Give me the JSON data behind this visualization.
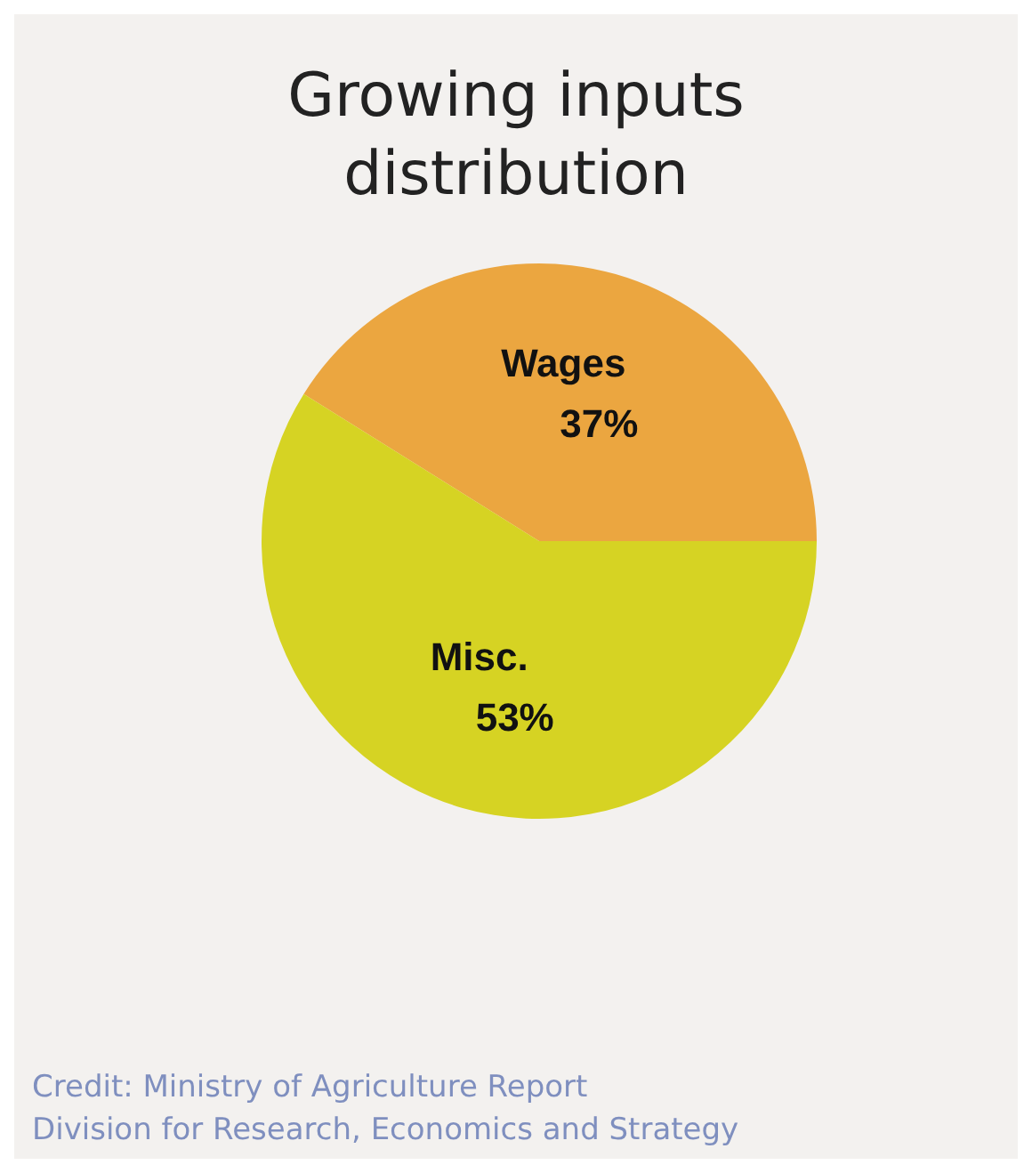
{
  "chart_data": {
    "type": "pie",
    "title": "Growing inputs distribution",
    "categories": [
      "Wages",
      "Misc."
    ],
    "values": [
      37,
      53
    ],
    "colors": [
      "#eba640",
      "#d6d323"
    ],
    "value_labels": [
      "37%",
      "53%"
    ],
    "legend": false,
    "annotations": [
      "Credit: Ministry of Agriculture Report",
      "Division for Research, Economics and Strategy"
    ]
  }
}
